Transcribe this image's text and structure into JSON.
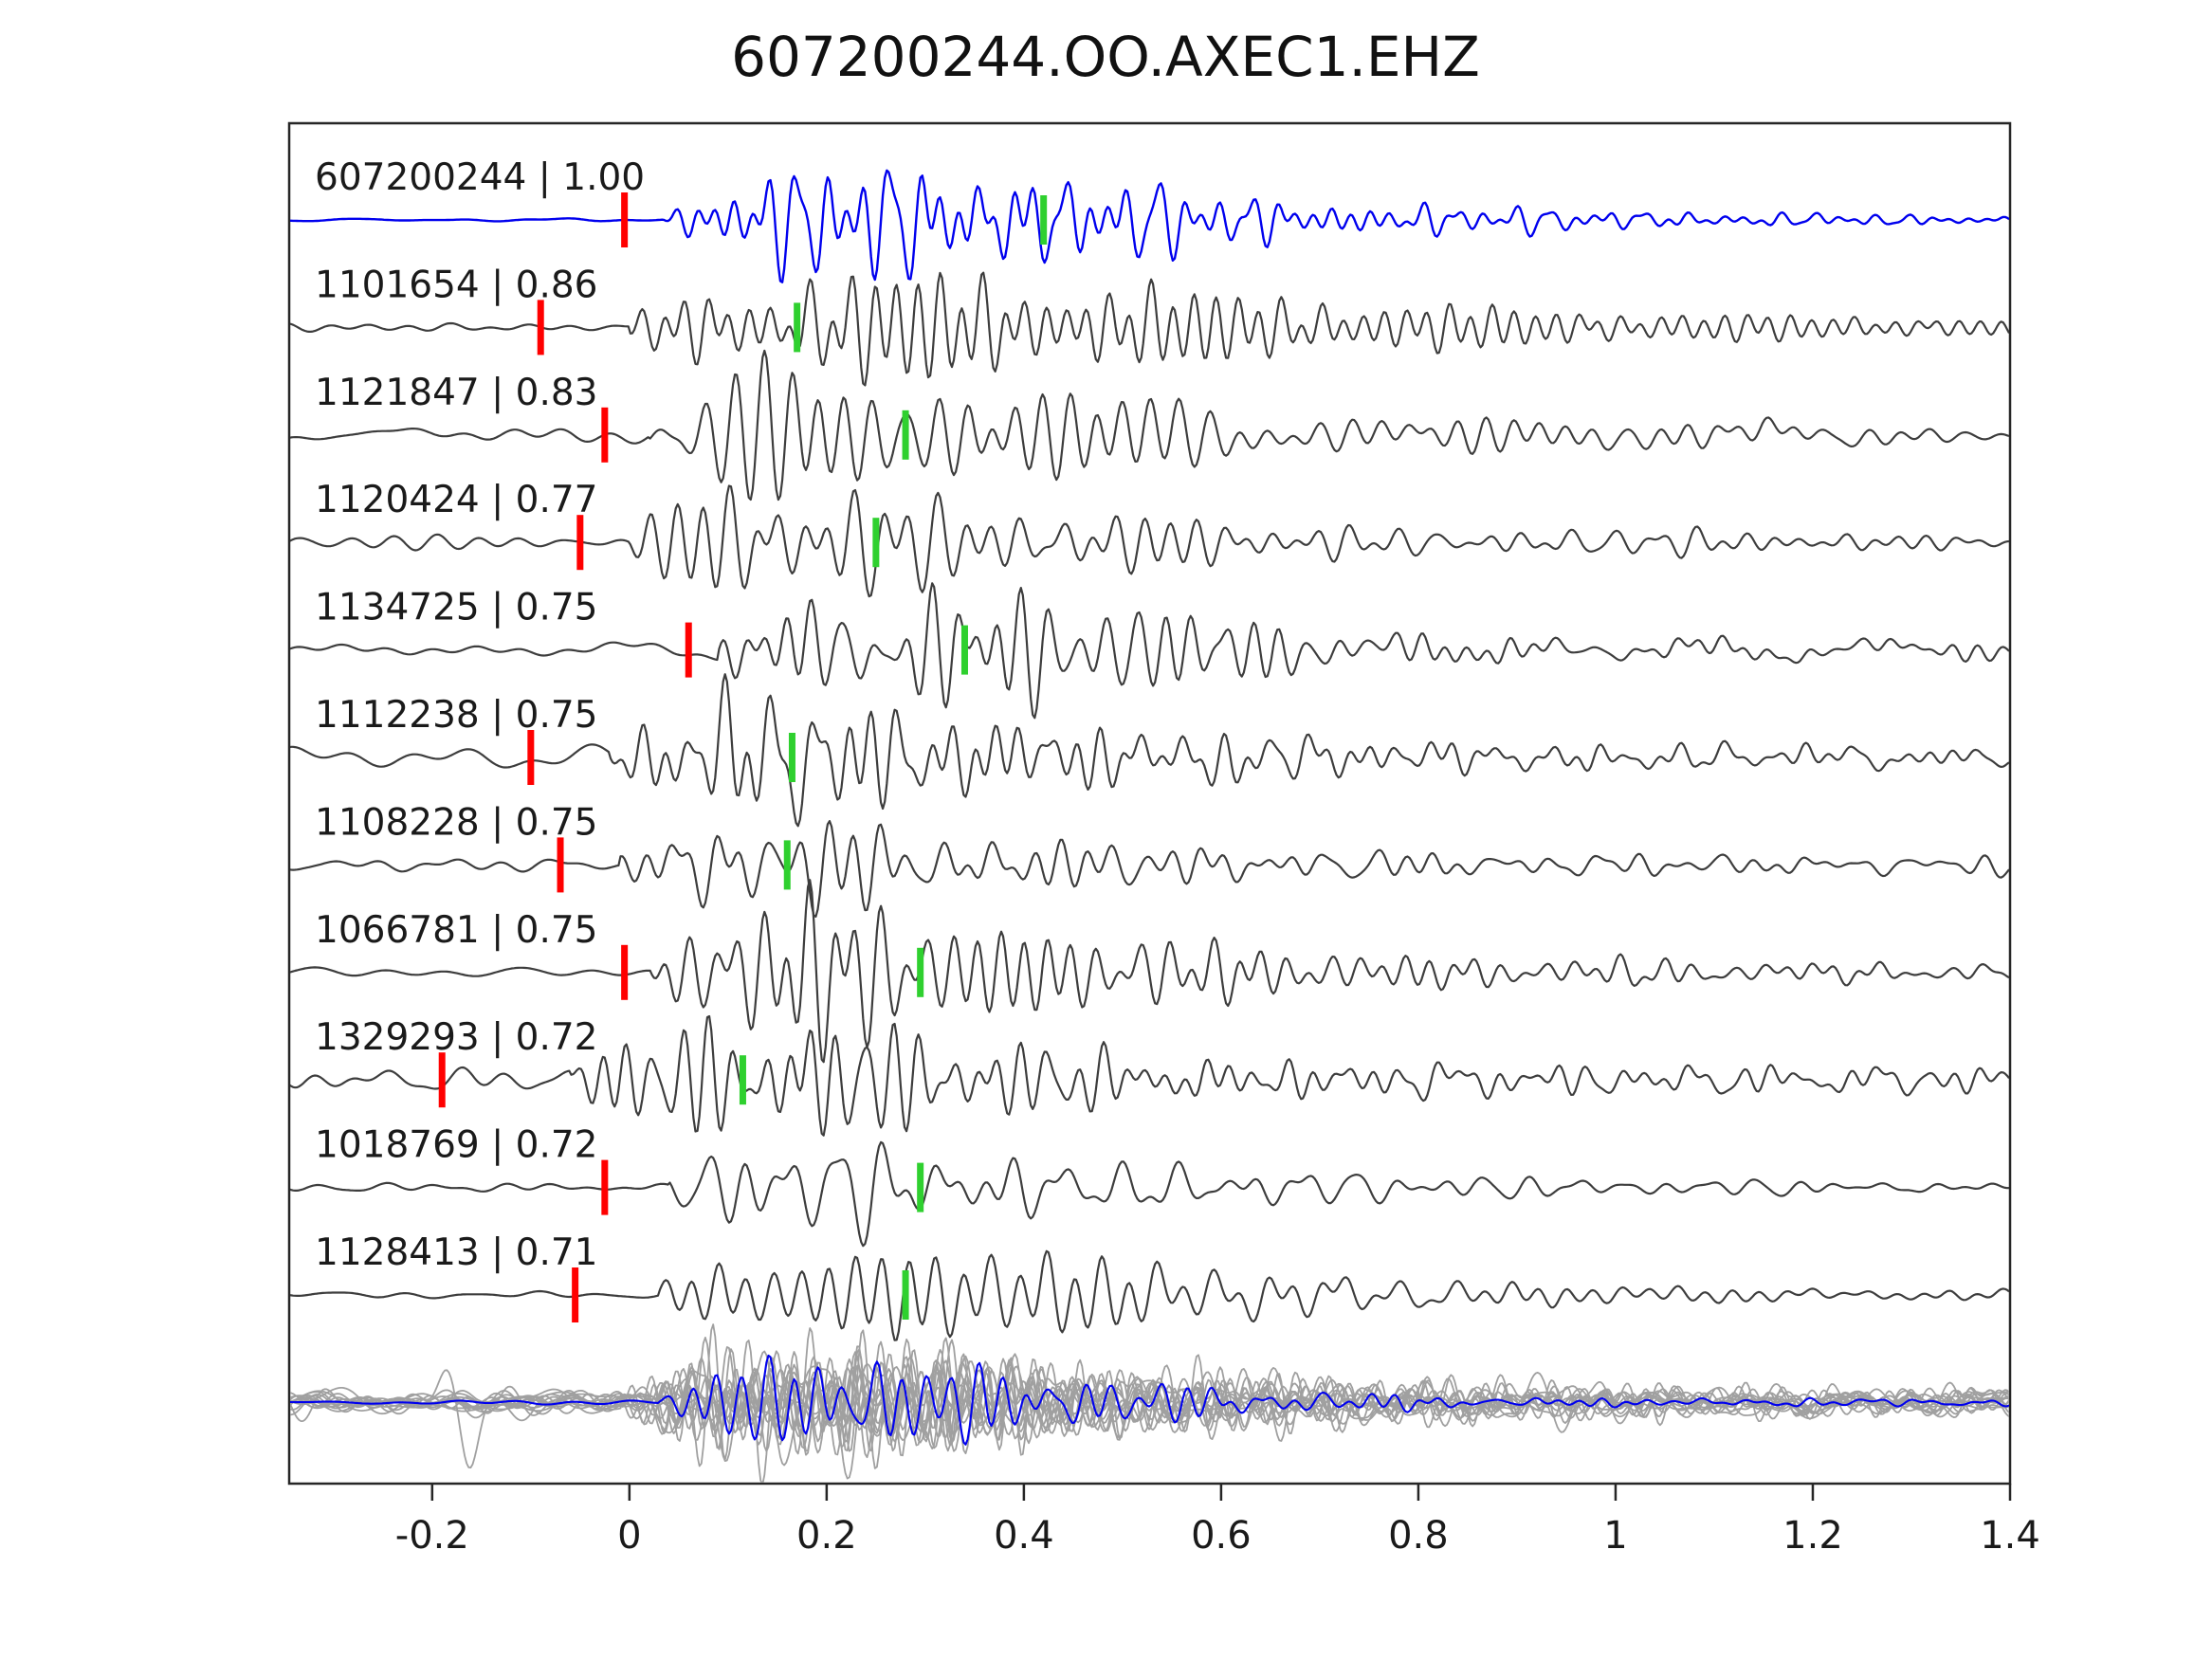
{
  "title": "607200244.OO.AXEC1.EHZ",
  "chart_data": {
    "type": "line",
    "title": "607200244.OO.AXEC1.EHZ",
    "xlabel": "",
    "ylabel": "",
    "xlim": [
      -0.345,
      1.4
    ],
    "x_ticks": [
      -0.2,
      0,
      0.2,
      0.4,
      0.6,
      0.8,
      1,
      1.2,
      1.4
    ],
    "x_tick_labels": [
      "-0.2",
      "0",
      "0.2",
      "0.4",
      "0.6",
      "0.8",
      "1",
      "1.2",
      "1.4"
    ],
    "grid": false,
    "legend": "none",
    "colors": {
      "template_trace": "#0000ee",
      "trace": "#3d3d3d",
      "pick_red": "#ff0000",
      "pick_green": "#2fd02f",
      "stack_gray": "#a0a0a0",
      "axis": "#262626",
      "text": "#1a1a1a",
      "background": "#ffffff"
    },
    "traces": [
      {
        "id": "607200244",
        "corr": "1.00",
        "label": "607200244 | 1.00",
        "is_template": true,
        "pick_red_t": -0.005,
        "pick_green_t": 0.42,
        "onset": 0.035,
        "amp": 52,
        "noise": 1.2,
        "coda": 0.1,
        "freq": 34
      },
      {
        "id": "1101654",
        "corr": "0.86",
        "label": "1101654 | 0.86",
        "is_template": false,
        "pick_red_t": -0.09,
        "pick_green_t": 0.17,
        "onset": 0.0,
        "amp": 50,
        "noise": 4,
        "coda": 0.2,
        "freq": 30
      },
      {
        "id": "1121847",
        "corr": "0.83",
        "label": "1121847 | 0.83",
        "is_template": false,
        "pick_red_t": -0.025,
        "pick_green_t": 0.28,
        "onset": 0.02,
        "amp": 50,
        "noise": 8,
        "coda": 0.3,
        "freq": 30
      },
      {
        "id": "1120424",
        "corr": "0.77",
        "label": "1120424 | 0.77",
        "is_template": false,
        "pick_red_t": -0.05,
        "pick_green_t": 0.25,
        "onset": 0.0,
        "amp": 52,
        "noise": 6,
        "coda": 0.18,
        "freq": 26
      },
      {
        "id": "1134725",
        "corr": "0.75",
        "label": "1134725 | 0.75",
        "is_template": false,
        "pick_red_t": 0.06,
        "pick_green_t": 0.34,
        "onset": 0.09,
        "amp": 52,
        "noise": 8,
        "coda": 0.22,
        "freq": 28
      },
      {
        "id": "1112238",
        "corr": "0.75",
        "label": "1112238 | 0.75",
        "is_template": false,
        "pick_red_t": -0.1,
        "pick_green_t": 0.165,
        "onset": -0.02,
        "amp": 48,
        "noise": 9,
        "coda": 0.26,
        "freq": 30
      },
      {
        "id": "1108228",
        "corr": "0.75",
        "label": "1108228 | 0.75",
        "is_template": false,
        "pick_red_t": -0.07,
        "pick_green_t": 0.16,
        "onset": -0.01,
        "amp": 46,
        "noise": 8,
        "coda": 0.24,
        "freq": 30
      },
      {
        "id": "1066781",
        "corr": "0.75",
        "label": "1066781 | 0.75",
        "is_template": false,
        "pick_red_t": -0.005,
        "pick_green_t": 0.295,
        "onset": 0.02,
        "amp": 52,
        "noise": 7,
        "coda": 0.26,
        "freq": 28
      },
      {
        "id": "1329293",
        "corr": "0.72",
        "label": "1329293 | 0.72",
        "is_template": false,
        "pick_red_t": -0.19,
        "pick_green_t": 0.115,
        "onset": -0.06,
        "amp": 40,
        "noise": 11,
        "coda": 0.38,
        "freq": 30
      },
      {
        "id": "1018769",
        "corr": "0.72",
        "label": "1018769 | 0.72",
        "is_template": false,
        "pick_red_t": -0.025,
        "pick_green_t": 0.295,
        "onset": 0.04,
        "amp": 50,
        "noise": 4,
        "coda": 0.16,
        "freq": 26
      },
      {
        "id": "1128413",
        "corr": "0.71",
        "label": "1128413 | 0.71",
        "is_template": false,
        "pick_red_t": -0.055,
        "pick_green_t": 0.28,
        "onset": 0.03,
        "amp": 46,
        "noise": 4,
        "coda": 0.16,
        "freq": 28
      }
    ],
    "stack": {
      "overlay_count": 14,
      "has_template_overlay": true
    }
  }
}
